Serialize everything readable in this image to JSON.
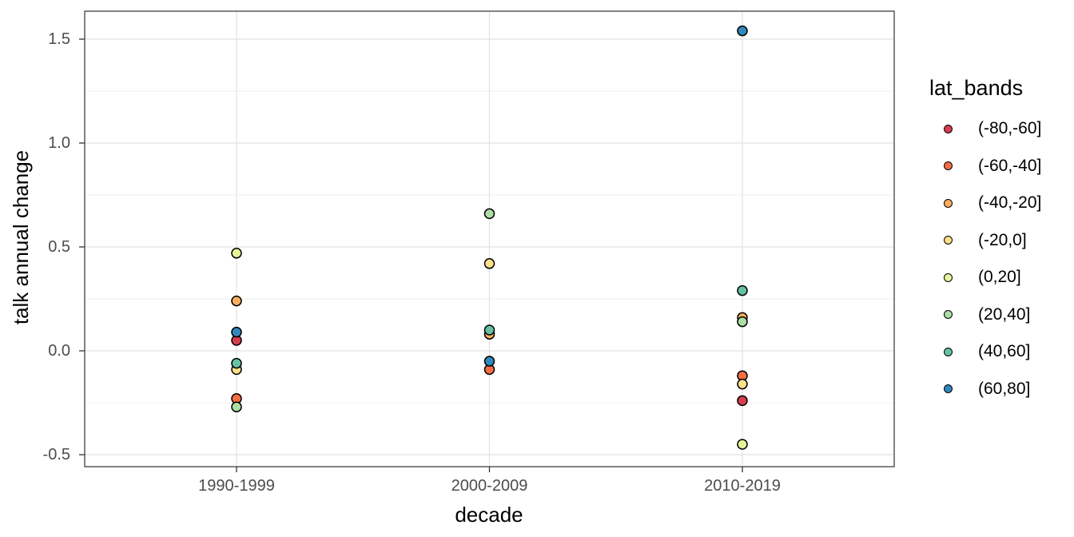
{
  "chart_data": {
    "type": "scatter",
    "title": "",
    "xlabel": "decade",
    "ylabel": "talk annual change",
    "legend_title": "lat_bands",
    "legend_position": "right",
    "categories": [
      "1990-1999",
      "2000-2009",
      "2010-2019"
    ],
    "y_ticks": [
      {
        "label": "1.5",
        "value": 1.5
      },
      {
        "label": "1.0",
        "value": 1.0
      },
      {
        "label": "0.5",
        "value": 0.5
      },
      {
        "label": "0.0",
        "value": 0.0
      },
      {
        "label": "-0.5",
        "value": -0.5
      }
    ],
    "y_minor_ticks": [
      1.25,
      0.75,
      0.25,
      -0.25
    ],
    "ylim": [
      -0.56,
      1.64
    ],
    "grid": true,
    "marker": {
      "shape": "circle",
      "outline": "#000000",
      "radius_px": 6
    },
    "series": [
      {
        "name": "(-80,-60]",
        "color": "#d53e4f",
        "values": [
          0.05,
          null,
          -0.24
        ]
      },
      {
        "name": "(-60,-40]",
        "color": "#f46d43",
        "values": [
          -0.23,
          -0.09,
          -0.12
        ]
      },
      {
        "name": "(-40,-20]",
        "color": "#fdae61",
        "values": [
          0.24,
          0.08,
          0.16
        ]
      },
      {
        "name": "(-20,0]",
        "color": "#fee08b",
        "values": [
          -0.09,
          0.42,
          -0.16
        ]
      },
      {
        "name": "(0,20]",
        "color": "#e6f598",
        "values": [
          0.47,
          null,
          -0.45
        ]
      },
      {
        "name": "(20,40]",
        "color": "#abdda4",
        "values": [
          -0.27,
          0.66,
          0.14
        ]
      },
      {
        "name": "(40,60]",
        "color": "#66c2a5",
        "values": [
          -0.06,
          0.1,
          0.29
        ]
      },
      {
        "name": "(60,80]",
        "color": "#3288bd",
        "values": [
          0.09,
          -0.05,
          1.54
        ]
      }
    ],
    "colors": {
      "tick_label": "#4d4d4d",
      "axis_title": "#000000",
      "grid_major": "#e2e2e2",
      "grid_minor": "#efefef",
      "panel_border": "#404040",
      "tick_mark": "#333333",
      "background": "#ffffff"
    }
  }
}
